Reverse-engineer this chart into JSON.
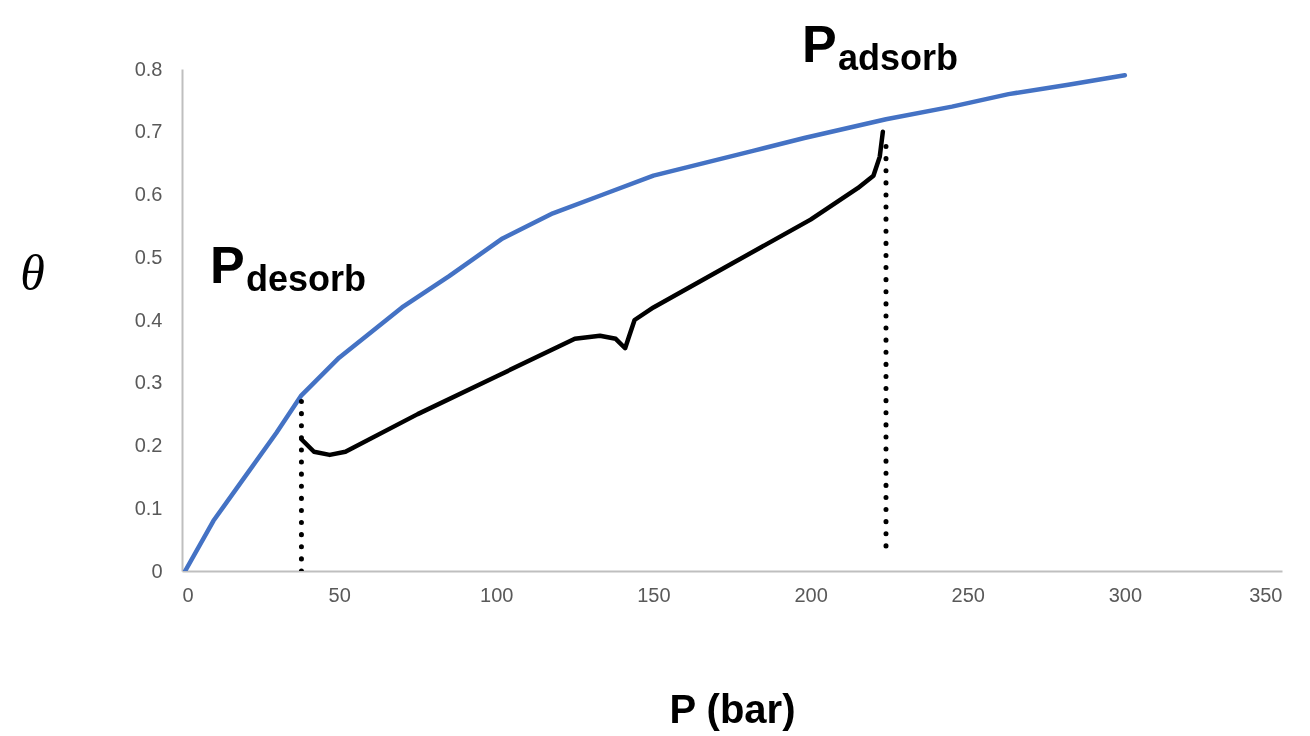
{
  "chart_data": {
    "type": "line",
    "xlabel": "P (bar)",
    "ylabel": "θ",
    "xlim": [
      0,
      350
    ],
    "xticks": [
      0,
      50,
      100,
      150,
      200,
      250,
      300,
      350
    ],
    "ylim": [
      0,
      0.8
    ],
    "yticks": [
      0,
      0.1,
      0.2,
      0.3,
      0.4,
      0.5,
      0.6,
      0.7,
      0.8
    ],
    "series": [
      {
        "color": "#4472c4",
        "x": [
          1,
          10,
          20,
          30,
          38,
          50,
          70,
          85,
          102,
          118,
          134,
          150,
          166,
          182,
          198,
          224,
          245,
          263,
          282,
          300
        ],
        "values": [
          0,
          0.08,
          0.15,
          0.22,
          0.28,
          0.34,
          0.42,
          0.47,
          0.53,
          0.57,
          0.6,
          0.63,
          0.65,
          0.67,
          0.69,
          0.72,
          0.74,
          0.76,
          0.775,
          0.79
        ]
      },
      {
        "color": "#000000",
        "x": [
          38,
          42,
          47,
          52,
          75,
          100,
          125,
          133,
          138,
          141,
          142,
          144,
          150,
          175,
          200,
          215,
          220,
          222,
          223
        ],
        "values": [
          0.21,
          0.19,
          0.185,
          0.19,
          0.25,
          0.31,
          0.37,
          0.375,
          0.37,
          0.355,
          0.37,
          0.4,
          0.42,
          0.49,
          0.56,
          0.61,
          0.63,
          0.66,
          0.7
        ]
      },
      {
        "color": "#000000",
        "line_style": "dotted",
        "x": [
          38,
          38
        ],
        "values": [
          0,
          0.27
        ]
      },
      {
        "color": "#000000",
        "line_style": "dotted",
        "x": [
          224,
          224
        ],
        "values": [
          0.04,
          0.68
        ]
      }
    ],
    "annotations": [
      "P$_{desorb}$",
      "P$_{adsorb}$"
    ]
  }
}
